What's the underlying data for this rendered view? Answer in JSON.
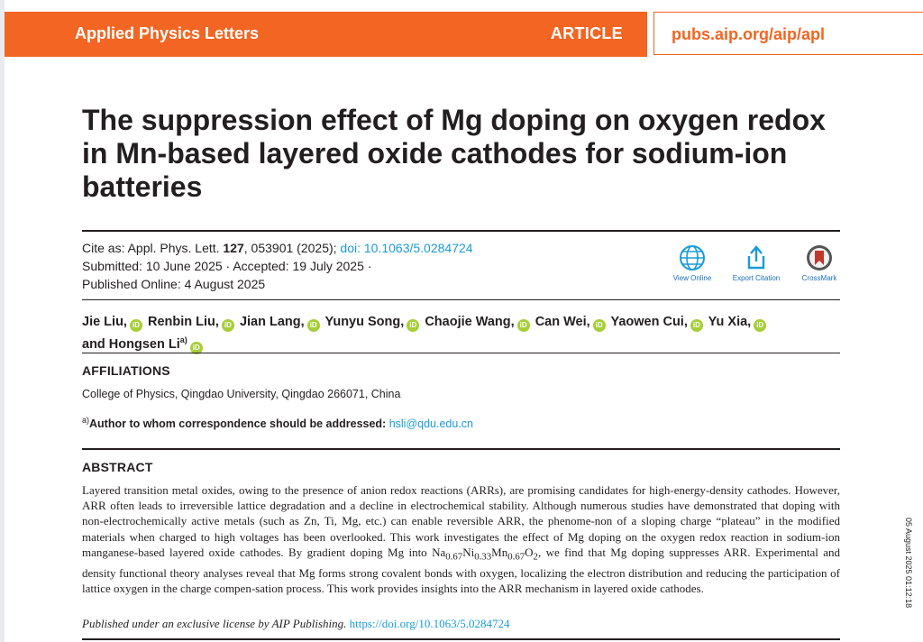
{
  "header": {
    "journal": "Applied Physics Letters",
    "article_label": "ARTICLE",
    "url": "pubs.aip.org/aip/apl"
  },
  "title": "The suppression effect of Mg doping on oxygen redox in Mn-based layered oxide cathodes for sodium-ion batteries",
  "cite": {
    "prefix": "Cite as: Appl. Phys. Lett. ",
    "volume": "127",
    "rest": ", 053901 (2025); ",
    "doi_label": "doi: 10.1063/5.0284724",
    "dates_line": "Submitted: 10 June 2025 · Accepted: 19 July 2025 ·",
    "published_line": "Published Online: 4 August 2025"
  },
  "tools": {
    "view_online": "View Online",
    "export_citation": "Export Citation",
    "crossmark": "CrossMark"
  },
  "authors": [
    "Jie Liu,",
    "Renbin Liu,",
    "Jian Lang,",
    "Yunyu Song,",
    "Chaojie Wang,",
    "Can Wei,",
    "Yaowen Cui,",
    "Yu Xia,",
    "and Hongsen Li"
  ],
  "author_note_marker": "a)",
  "orcid_label": "iD",
  "affiliations": {
    "heading": "AFFILIATIONS",
    "text": "College of Physics, Qingdao University, Qingdao 266071, China",
    "corr_marker": "a)",
    "corr_label": "Author to whom correspondence should be addressed: ",
    "corr_email": "hsli@qdu.edu.cn"
  },
  "abstract": {
    "heading": "ABSTRACT",
    "text_part1": "Layered transition metal oxides, owing to the presence of anion redox reactions (ARRs), are promising candidates for high-energy-density cathodes. However, ARR often leads to irreversible lattice degradation and a decline in electrochemical stability. Although numerous studies have demonstrated that doping with non-electrochemically active metals (such as Zn, Ti, Mg, etc.) can enable reversible ARR, the phenome-non of a sloping charge “plateau” in the modified materials when charged to high voltages has been overlooked. This work investigates the effect of Mg doping on the oxygen redox reaction in sodium-ion manganese-based layered oxide cathodes. By gradient doping Mg into ",
    "formula": {
      "na": "Na",
      "na_sub": "0.67",
      "ni": "Ni",
      "ni_sub": "0.33",
      "mn": "Mn",
      "mn_sub": "0.67",
      "o": "O",
      "o_sub": "2"
    },
    "text_part2": ", we find that Mg doping suppresses ARR. Experimental and density functional theory analyses reveal that Mg forms strong covalent bonds with oxygen, localizing the electron distribution and reducing the participation of lattice oxygen in the charge compen-sation process. This work provides insights into the ARR mechanism in layered oxide cathodes."
  },
  "license": {
    "text": "Published under an exclusive license by AIP Publishing.",
    "doi_url": "https://doi.org/10.1063/5.0284724"
  },
  "side_stamp": "05 August 2025 01:12:18",
  "colors": {
    "brand_orange": "#f26522",
    "link_blue": "#1a9bd7",
    "orcid_green": "#a6ce39",
    "crossmark_red": "#c0392b"
  }
}
